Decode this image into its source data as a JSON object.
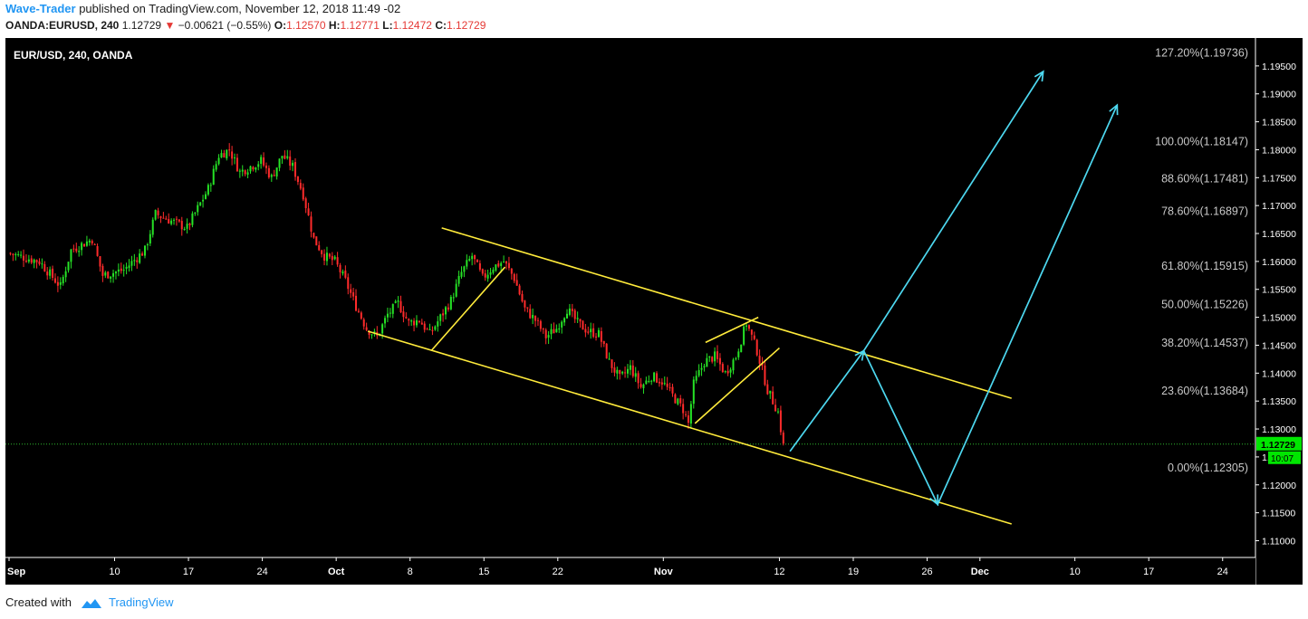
{
  "header": {
    "author": "Wave-Trader",
    "published_text": "published on TradingView.com, November 12, 2018 11:49 -02"
  },
  "quote": {
    "symbol": "OANDA:EURUSD, 240",
    "price": "1.12729",
    "change_arrow": "▼",
    "change": "−0.00621 (−0.55%)",
    "o_label": "O:",
    "o_value": "1.12570",
    "h_label": "H:",
    "h_value": "1.12771",
    "l_label": "L:",
    "l_value": "1.12472",
    "c_label": "C:",
    "c_value": "1.12729"
  },
  "footer": {
    "created_with": "Created with",
    "brand": "TradingView"
  },
  "chart_data": {
    "type": "candlestick",
    "title": "EUR/USD, 240, OANDA",
    "colors": {
      "background": "#000000",
      "up": "#26e326",
      "down": "#ff2b2b",
      "channel": "#ffeb3b",
      "projection": "#4dd8f0",
      "fib_label": "#c8c8c8",
      "price_line": "#2eb82e",
      "price_tag": "#00e600"
    },
    "y_axis": {
      "range": [
        1.107,
        1.2
      ],
      "ticks": [
        "1.11000",
        "1.11500",
        "1.12000",
        "1.12500",
        "1.13000",
        "1.13500",
        "1.14000",
        "1.14500",
        "1.15000",
        "1.15500",
        "1.16000",
        "1.16500",
        "1.17000",
        "1.17500",
        "1.18000",
        "1.18500",
        "1.19000",
        "1.19500"
      ],
      "current_price": "1.12729",
      "countdown": "10:07"
    },
    "x_axis": {
      "ticks": [
        {
          "label": "Sep",
          "day": 0,
          "bold": true
        },
        {
          "label": "10",
          "day": 10
        },
        {
          "label": "17",
          "day": 17
        },
        {
          "label": "24",
          "day": 24
        },
        {
          "label": "Oct",
          "day": 31,
          "bold": true
        },
        {
          "label": "8",
          "day": 38
        },
        {
          "label": "15",
          "day": 45
        },
        {
          "label": "22",
          "day": 52
        },
        {
          "label": "Nov",
          "day": 62,
          "bold": true
        },
        {
          "label": "12",
          "day": 73
        },
        {
          "label": "19",
          "day": 80
        },
        {
          "label": "26",
          "day": 87
        },
        {
          "label": "Dec",
          "day": 92,
          "bold": true
        },
        {
          "label": "10",
          "day": 101
        },
        {
          "label": "17",
          "day": 108
        },
        {
          "label": "24",
          "day": 115
        }
      ]
    },
    "fib_levels": [
      {
        "label": "127.20%(1.19736)",
        "price": 1.19736
      },
      {
        "label": "100.00%(1.18147)",
        "price": 1.18147
      },
      {
        "label": "88.60%(1.17481)",
        "price": 1.17481
      },
      {
        "label": "78.60%(1.16897)",
        "price": 1.16897
      },
      {
        "label": "61.80%(1.15915)",
        "price": 1.15915
      },
      {
        "label": "50.00%(1.15226)",
        "price": 1.15226
      },
      {
        "label": "38.20%(1.14537)",
        "price": 1.14537
      },
      {
        "label": "23.60%(1.13684)",
        "price": 1.13684
      },
      {
        "label": "0.00%(1.12305)",
        "price": 1.12305
      }
    ],
    "closes": [
      {
        "day": 0,
        "close": 1.1615
      },
      {
        "day": 3,
        "close": 1.16
      },
      {
        "day": 5,
        "close": 1.1555
      },
      {
        "day": 6,
        "close": 1.162
      },
      {
        "day": 8,
        "close": 1.164
      },
      {
        "day": 9,
        "close": 1.1575
      },
      {
        "day": 11,
        "close": 1.1585
      },
      {
        "day": 13,
        "close": 1.162
      },
      {
        "day": 14,
        "close": 1.1685
      },
      {
        "day": 17,
        "close": 1.166
      },
      {
        "day": 19,
        "close": 1.173
      },
      {
        "day": 20,
        "close": 1.179
      },
      {
        "day": 21,
        "close": 1.18
      },
      {
        "day": 22,
        "close": 1.176
      },
      {
        "day": 24,
        "close": 1.178
      },
      {
        "day": 25,
        "close": 1.175
      },
      {
        "day": 26,
        "close": 1.179
      },
      {
        "day": 27,
        "close": 1.177
      },
      {
        "day": 28,
        "close": 1.172
      },
      {
        "day": 29,
        "close": 1.164
      },
      {
        "day": 30,
        "close": 1.161
      },
      {
        "day": 31,
        "close": 1.16
      },
      {
        "day": 32,
        "close": 1.1565
      },
      {
        "day": 33,
        "close": 1.152
      },
      {
        "day": 34,
        "close": 1.148
      },
      {
        "day": 35,
        "close": 1.1465
      },
      {
        "day": 36,
        "close": 1.1505
      },
      {
        "day": 37,
        "close": 1.1525
      },
      {
        "day": 38,
        "close": 1.149
      },
      {
        "day": 39,
        "close": 1.1495
      },
      {
        "day": 40,
        "close": 1.147
      },
      {
        "day": 41,
        "close": 1.15
      },
      {
        "day": 42,
        "close": 1.153
      },
      {
        "day": 43,
        "close": 1.158
      },
      {
        "day": 44,
        "close": 1.161
      },
      {
        "day": 45,
        "close": 1.157
      },
      {
        "day": 46,
        "close": 1.159
      },
      {
        "day": 47,
        "close": 1.16
      },
      {
        "day": 48,
        "close": 1.157
      },
      {
        "day": 49,
        "close": 1.1515
      },
      {
        "day": 50,
        "close": 1.1495
      },
      {
        "day": 51,
        "close": 1.1465
      },
      {
        "day": 52,
        "close": 1.148
      },
      {
        "day": 53,
        "close": 1.1515
      },
      {
        "day": 54,
        "close": 1.149
      },
      {
        "day": 55,
        "close": 1.1475
      },
      {
        "day": 56,
        "close": 1.147
      },
      {
        "day": 57,
        "close": 1.142
      },
      {
        "day": 58,
        "close": 1.139
      },
      {
        "day": 59,
        "close": 1.141
      },
      {
        "day": 60,
        "close": 1.1375
      },
      {
        "day": 61,
        "close": 1.1395
      },
      {
        "day": 62,
        "close": 1.1385
      },
      {
        "day": 63,
        "close": 1.136
      },
      {
        "day": 64,
        "close": 1.1335
      },
      {
        "day": 64.5,
        "close": 1.131
      },
      {
        "day": 65,
        "close": 1.138
      },
      {
        "day": 66,
        "close": 1.142
      },
      {
        "day": 67,
        "close": 1.143
      },
      {
        "day": 68,
        "close": 1.14
      },
      {
        "day": 69,
        "close": 1.143
      },
      {
        "day": 70,
        "close": 1.149
      },
      {
        "day": 71,
        "close": 1.144
      },
      {
        "day": 72,
        "close": 1.137
      },
      {
        "day": 73,
        "close": 1.133
      },
      {
        "day": 73.5,
        "close": 1.127
      }
    ],
    "channel_upper": [
      [
        41,
        1.166
      ],
      [
        95,
        1.1355
      ]
    ],
    "channel_lower": [
      [
        34,
        1.1475
      ],
      [
        95,
        1.113
      ]
    ],
    "flags": [
      {
        "from": [
          40,
          1.144
        ],
        "to": [
          47,
          1.159
        ]
      },
      {
        "from": [
          65,
          1.131
        ],
        "to": [
          73,
          1.1445
        ]
      },
      {
        "from": [
          66,
          1.1455
        ],
        "to": [
          71,
          1.15
        ]
      }
    ],
    "projection_1": [
      [
        74,
        1.126
      ],
      [
        81,
        1.144
      ],
      [
        88,
        1.1165
      ],
      [
        105,
        1.188
      ]
    ],
    "projection_2": [
      [
        81,
        1.144
      ],
      [
        98,
        1.194
      ]
    ]
  }
}
